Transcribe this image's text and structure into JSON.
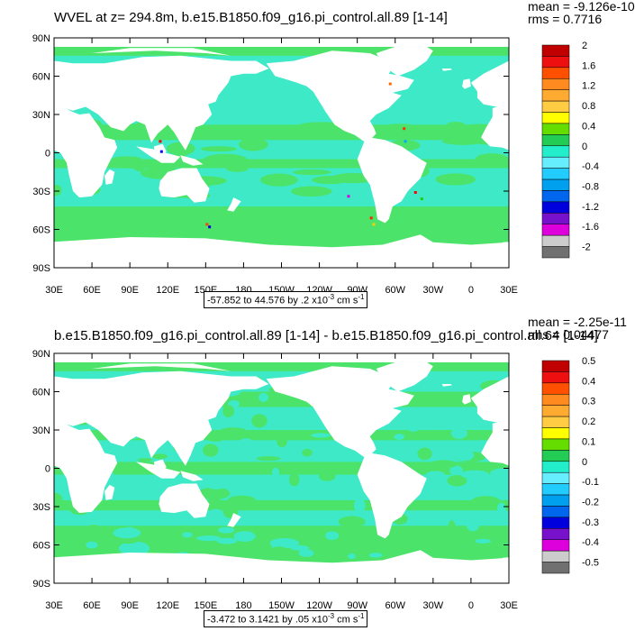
{
  "panels": [
    {
      "title": "WVEL at z= 294.8m, b.e15.B1850.f09_g16.pi_control.all.89 [1-14]",
      "mean": "mean = -9.126e-10",
      "rms": "rms = 0.7716",
      "y_ticks": [
        "90N",
        "60N",
        "30N",
        "0",
        "30S",
        "60S",
        "90S"
      ],
      "x_ticks": [
        "30E",
        "60E",
        "90E",
        "120E",
        "150E",
        "180",
        "150W",
        "120W",
        "90W",
        "60W",
        "30W",
        "0",
        "30E"
      ],
      "range_main": "-57.852 to 44.576 by .2 x10",
      "range_exp": "-3",
      "range_unit": " cm s",
      "range_unit_exp": "-1",
      "colorbar_labels": [
        "2",
        "1.6",
        "1.2",
        "0.8",
        "0.4",
        "0",
        "-0.4",
        "-0.8",
        "-1.2",
        "-1.6",
        "-2"
      ]
    },
    {
      "title": "b.e15.B1850.f09_g16.pi_control.all.89 [1-14] - b.e15.B1850.f09_g16.pi_control.all.64 [1-14]",
      "mean": "mean = -2.25e-11",
      "rms": "rms = 0.04477",
      "y_ticks": [
        "90N",
        "60N",
        "30N",
        "0",
        "30S",
        "60S",
        "90S"
      ],
      "x_ticks": [
        "30E",
        "60E",
        "90E",
        "120E",
        "150E",
        "180",
        "150W",
        "120W",
        "90W",
        "60W",
        "30W",
        "0",
        "30E"
      ],
      "range_main": "-3.472 to 3.1421 by .05 x10",
      "range_exp": "-3",
      "range_unit": " cm s",
      "range_unit_exp": "-1",
      "colorbar_labels": [
        "0.5",
        "0.4",
        "0.3",
        "0.2",
        "0.1",
        "0",
        "-0.1",
        "-0.2",
        "-0.3",
        "-0.4",
        "-0.5"
      ]
    }
  ],
  "colorbar_colors": [
    "#c00000",
    "#ee1010",
    "#ff5000",
    "#ff8a20",
    "#ffaa30",
    "#ffcc44",
    "#ffff00",
    "#66dd00",
    "#22cc55",
    "#22eecc",
    "#66eeff",
    "#22ccff",
    "#00a0ee",
    "#0066ee",
    "#0000dd",
    "#7711cc",
    "#dd00dd",
    "#cccccc",
    "#707070"
  ],
  "colors": {
    "ocean_base": "#3ee9c8",
    "ocean_green": "#4ce36a",
    "land": "#ffffff"
  }
}
